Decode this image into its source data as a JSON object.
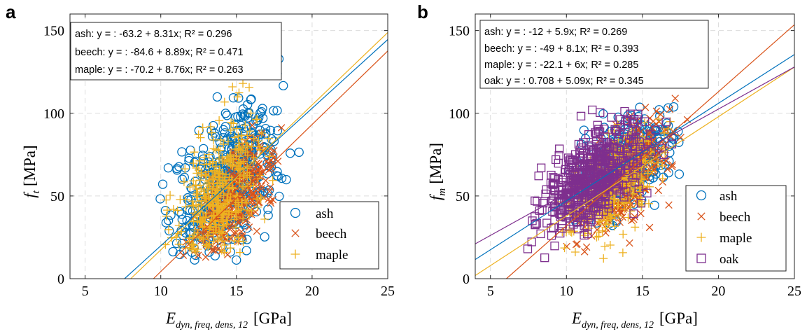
{
  "chart_data": [
    {
      "type": "scatter",
      "panel_label": "a",
      "x_range": [
        4,
        25
      ],
      "y_range": [
        0,
        160
      ],
      "x_ticks": [
        5,
        10,
        15,
        20,
        25
      ],
      "y_ticks": [
        0,
        50,
        100,
        150
      ],
      "grid": "dashed",
      "ylabel": {
        "symbol": "f",
        "subscript": "t",
        "unit": "[MPa]"
      },
      "xlabel": {
        "symbol": "E",
        "subscript": "dyn, freq, dens, 12",
        "unit": "[GPa]"
      },
      "equations": [
        "ash: y = : -63.2 + 8.31x; R² = 0.296",
        "beech: y = : -84.6 + 8.89x; R² = 0.471",
        "maple: y = : -70.2 + 8.76x; R² = 0.263"
      ],
      "legend_position": "bottom-right",
      "series": [
        {
          "name": "ash",
          "marker": "circle",
          "color": "#0072BD",
          "intercept": -63.2,
          "slope": 8.31,
          "x_mean": 14.3,
          "y_mean": 56,
          "x_sd": 1.7,
          "y_sd": 26,
          "corr": 0.54,
          "n": 500,
          "x_clip": [
            9.9,
            20.6
          ],
          "y_clip": [
            10,
            135
          ]
        },
        {
          "name": "beech",
          "marker": "x",
          "color": "#D95319",
          "intercept": -84.6,
          "slope": 8.89,
          "x_mean": 14.8,
          "y_mean": 47,
          "x_sd": 1.3,
          "y_sd": 17,
          "corr": 0.69,
          "n": 300,
          "x_clip": [
            9.3,
            18.5
          ],
          "y_clip": [
            9,
            112
          ]
        },
        {
          "name": "maple",
          "marker": "plus",
          "color": "#EDB120",
          "intercept": -70.2,
          "slope": 8.76,
          "x_mean": 13.9,
          "y_mean": 52,
          "x_sd": 1.4,
          "y_sd": 24,
          "corr": 0.51,
          "n": 420,
          "x_clip": [
            7.6,
            17.9
          ],
          "y_clip": [
            14,
            130
          ]
        }
      ]
    },
    {
      "type": "scatter",
      "panel_label": "b",
      "x_range": [
        4,
        25
      ],
      "y_range": [
        0,
        160
      ],
      "x_ticks": [
        5,
        10,
        15,
        20,
        25
      ],
      "y_ticks": [
        0,
        50,
        100,
        150
      ],
      "grid": "dashed",
      "ylabel": {
        "symbol": "f",
        "subscript": "m",
        "unit": "[MPa]"
      },
      "xlabel": {
        "symbol": "E",
        "subscript": "dyn, freq, dens, 12",
        "unit": "[GPa]"
      },
      "equations": [
        "ash: y = : -12 + 5.9x; R² = 0.269",
        "beech: y = : -49 + 8.1x; R² = 0.393",
        "maple: y = : -22.1 + 6x; R² = 0.285",
        "oak: y = : 0.708 + 5.09x; R² = 0.345"
      ],
      "legend_position": "bottom-right",
      "series": [
        {
          "name": "ash",
          "marker": "circle",
          "color": "#0072BD",
          "intercept": -12,
          "slope": 5.9,
          "x_mean": 14.2,
          "y_mean": 72,
          "x_sd": 1.6,
          "y_sd": 16,
          "corr": 0.52,
          "n": 330,
          "x_clip": [
            9.5,
            17.5
          ],
          "y_clip": [
            25,
            105
          ]
        },
        {
          "name": "beech",
          "marker": "x",
          "color": "#D95319",
          "intercept": -49,
          "slope": 8.1,
          "x_mean": 14.0,
          "y_mean": 64,
          "x_sd": 1.5,
          "y_sd": 19,
          "corr": 0.63,
          "n": 320,
          "x_clip": [
            8.0,
            18.5
          ],
          "y_clip": [
            13,
            110
          ]
        },
        {
          "name": "maple",
          "marker": "plus",
          "color": "#EDB120",
          "intercept": -22.1,
          "slope": 6,
          "x_mean": 13.2,
          "y_mean": 57,
          "x_sd": 1.5,
          "y_sd": 17,
          "corr": 0.53,
          "n": 370,
          "x_clip": [
            8.0,
            17.5
          ],
          "y_clip": [
            12,
            105
          ]
        },
        {
          "name": "oak",
          "marker": "square",
          "color": "#7E2F8E",
          "intercept": 0.708,
          "slope": 5.09,
          "x_mean": 11.6,
          "y_mean": 60,
          "x_sd": 1.8,
          "y_sd": 16,
          "corr": 0.59,
          "n": 520,
          "x_clip": [
            7.0,
            19.9
          ],
          "y_clip": [
            7,
            107
          ]
        }
      ]
    }
  ]
}
